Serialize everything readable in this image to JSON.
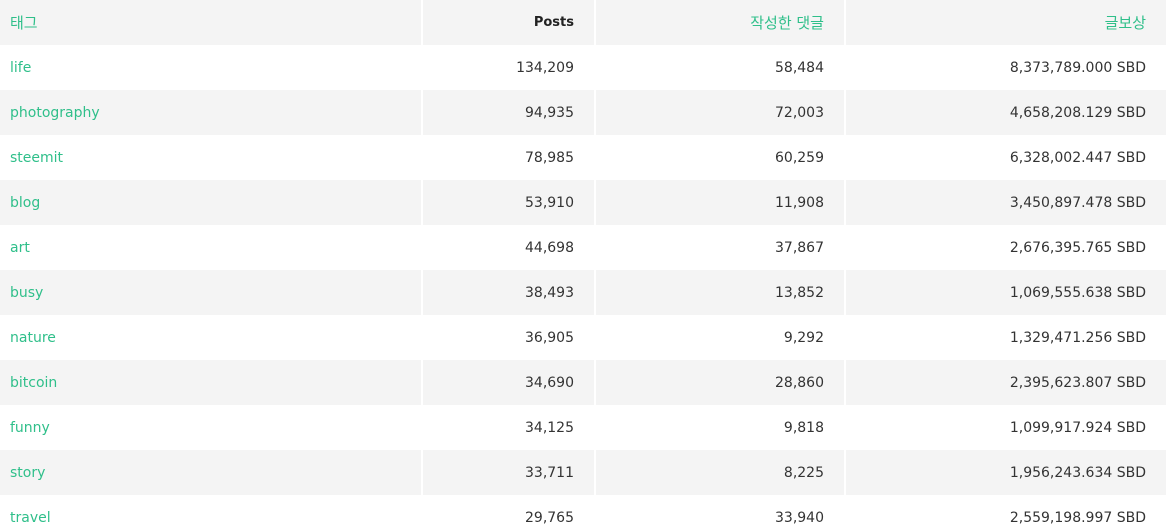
{
  "headers": {
    "tag": "태그",
    "posts": "Posts",
    "comments": "작성한 댓글",
    "payout": "글보상"
  },
  "rows": [
    {
      "tag": "life",
      "posts": "134,209",
      "comments": "58,484",
      "payout": "8,373,789.000 SBD"
    },
    {
      "tag": "photography",
      "posts": "94,935",
      "comments": "72,003",
      "payout": "4,658,208.129 SBD"
    },
    {
      "tag": "steemit",
      "posts": "78,985",
      "comments": "60,259",
      "payout": "6,328,002.447 SBD"
    },
    {
      "tag": "blog",
      "posts": "53,910",
      "comments": "11,908",
      "payout": "3,450,897.478 SBD"
    },
    {
      "tag": "art",
      "posts": "44,698",
      "comments": "37,867",
      "payout": "2,676,395.765 SBD"
    },
    {
      "tag": "busy",
      "posts": "38,493",
      "comments": "13,852",
      "payout": "1,069,555.638 SBD"
    },
    {
      "tag": "nature",
      "posts": "36,905",
      "comments": "9,292",
      "payout": "1,329,471.256 SBD"
    },
    {
      "tag": "bitcoin",
      "posts": "34,690",
      "comments": "28,860",
      "payout": "2,395,623.807 SBD"
    },
    {
      "tag": "funny",
      "posts": "34,125",
      "comments": "9,818",
      "payout": "1,099,917.924 SBD"
    },
    {
      "tag": "story",
      "posts": "33,711",
      "comments": "8,225",
      "payout": "1,956,243.634 SBD"
    },
    {
      "tag": "travel",
      "posts": "29,765",
      "comments": "33,940",
      "payout": "2,559,198.997 SBD"
    }
  ],
  "colors": {
    "accent": "#2fbf8a",
    "text": "#333333",
    "stripe": "#f4f4f4"
  }
}
